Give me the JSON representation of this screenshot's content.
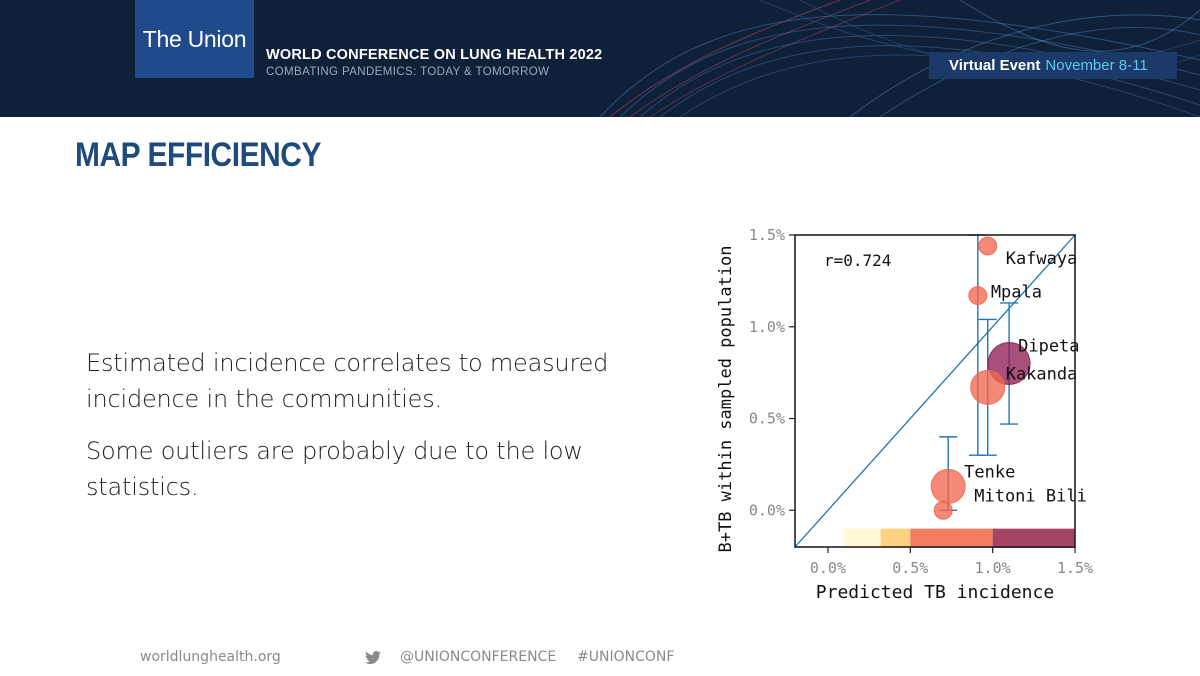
{
  "header": {
    "logo": "The Union",
    "conference_title": "WORLD CONFERENCE ON LUNG HEALTH 2022",
    "conference_subtitle": "COMBATING PANDEMICS: TODAY & TOMORROW",
    "event_label": "Virtual Event",
    "event_dates": "November 8-11"
  },
  "slide": {
    "title": "MAP EFFICIENCY",
    "paragraphs": [
      "Estimated incidence correlates to measured incidence in the communities.",
      "Some outliers are probably due to the low statistics."
    ]
  },
  "footer": {
    "website": "worldlunghealth.org",
    "twitter_handle": "@UNIONCONFERENCE",
    "hashtag": "#UNIONCONF",
    "twitter_icon": "twitter-bird-icon"
  },
  "colors": {
    "header_bg": "#0f2138",
    "logo_bg": "#1f4a8c",
    "title": "#1f4a7c",
    "event_date": "#5ec8f0",
    "fit_line": "#1f77b4"
  },
  "chart_data": {
    "type": "scatter",
    "xlabel": "Predicted TB incidence",
    "ylabel": "B+TB within sampled population",
    "xlim": [
      -0.2,
      1.5
    ],
    "ylim": [
      -0.2,
      1.5
    ],
    "x_ticks": [
      "0.0%",
      "0.5%",
      "1.0%",
      "1.5%"
    ],
    "y_ticks": [
      "0.0%",
      "0.5%",
      "1.0%",
      "1.5%"
    ],
    "annotation": "r=0.724",
    "identity_line": true,
    "grid": false,
    "points": [
      {
        "label": "Kafwaya",
        "x": 0.97,
        "y": 1.44,
        "size": "small",
        "color": "#f0684f",
        "err": [
          null,
          null
        ]
      },
      {
        "label": "Mpala",
        "x": 0.91,
        "y": 1.17,
        "size": "small",
        "color": "#f0684f",
        "err": [
          0.3,
          1.5
        ]
      },
      {
        "label": "Dipeta",
        "x": 1.1,
        "y": 0.8,
        "size": "large",
        "color": "#8e1f55",
        "err": [
          0.47,
          1.13
        ]
      },
      {
        "label": "Kakanda",
        "x": 0.97,
        "y": 0.67,
        "size": "medium",
        "color": "#f0684f",
        "err": [
          0.3,
          1.04
        ]
      },
      {
        "label": "Tenke",
        "x": 0.73,
        "y": 0.13,
        "size": "medium",
        "color": "#f0684f",
        "err": [
          0.0,
          0.4
        ]
      },
      {
        "label": "Mitoni Bili",
        "x": 0.7,
        "y": 0.0,
        "size": "small",
        "color": "#f0684f",
        "err": [
          null,
          null
        ]
      }
    ],
    "color_bar_bands": [
      {
        "from": 0.1,
        "to": 0.32,
        "color": "#fff8d4"
      },
      {
        "from": 0.32,
        "to": 0.5,
        "color": "#fdd382"
      },
      {
        "from": 0.5,
        "to": 1.0,
        "color": "#f47c62"
      },
      {
        "from": 1.0,
        "to": 1.5,
        "color": "#a64466"
      }
    ]
  }
}
